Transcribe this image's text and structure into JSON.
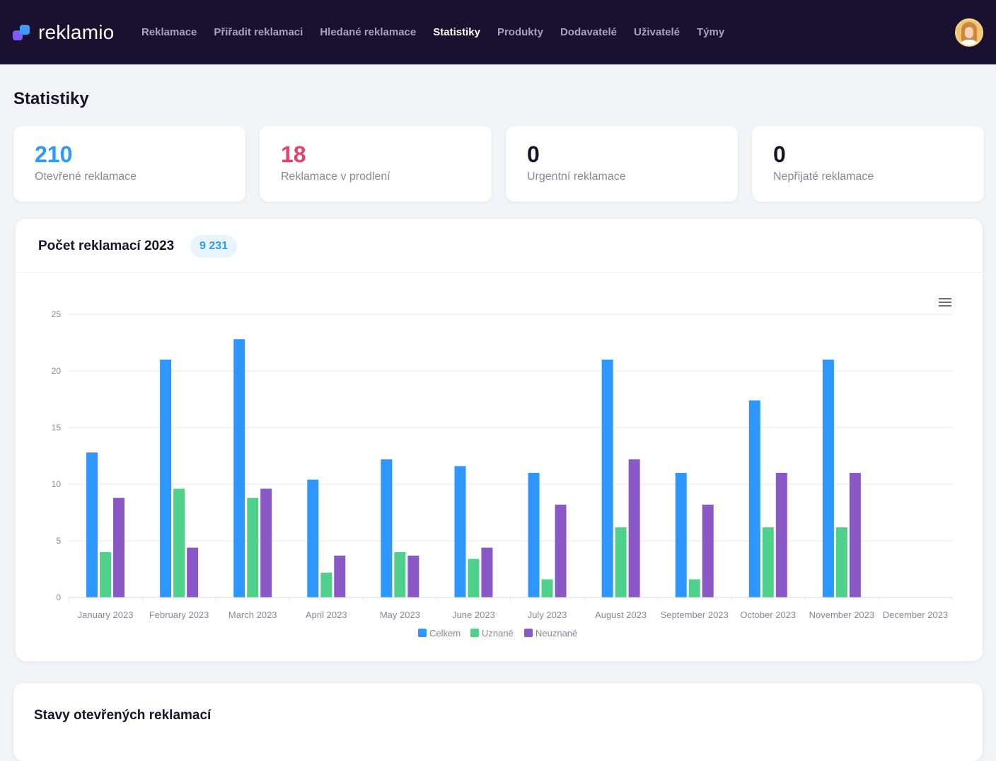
{
  "app": {
    "name": "reklamio"
  },
  "nav": {
    "items": [
      {
        "label": "Reklamace",
        "active": false
      },
      {
        "label": "Přiřadit reklamaci",
        "active": false
      },
      {
        "label": "Hledané reklamace",
        "active": false
      },
      {
        "label": "Statistiky",
        "active": true
      },
      {
        "label": "Produkty",
        "active": false
      },
      {
        "label": "Dodavatelé",
        "active": false
      },
      {
        "label": "Uživatelé",
        "active": false
      },
      {
        "label": "Týmy",
        "active": false
      }
    ]
  },
  "page": {
    "title": "Statistiky"
  },
  "stats": [
    {
      "value": "210",
      "label": "Otevřené reklamace",
      "color": "#2e9bf5"
    },
    {
      "value": "18",
      "label": "Reklamace v prodlení",
      "color": "#e4416b"
    },
    {
      "value": "0",
      "label": "Urgentní reklamace",
      "color": "#16132b"
    },
    {
      "value": "0",
      "label": "Nepřijaté reklamace",
      "color": "#16132b"
    }
  ],
  "chart_card": {
    "title": "Počet reklamací 2023",
    "badge": "9 231",
    "menu_icon": "hamburger-menu-icon"
  },
  "chart_data": {
    "type": "bar",
    "title": "",
    "xlabel": "",
    "ylabel": "",
    "ylim": [
      0,
      25
    ],
    "yticks": [
      0,
      5,
      10,
      15,
      20,
      25
    ],
    "grid": true,
    "legend_position": "bottom",
    "categories": [
      "January 2023",
      "February 2023",
      "March 2023",
      "April 2023",
      "May 2023",
      "June 2023",
      "July 2023",
      "August 2023",
      "September 2023",
      "October 2023",
      "November 2023",
      "December 2023"
    ],
    "series": [
      {
        "name": "Celkem",
        "color": "#2e96ff",
        "values": [
          12.8,
          21,
          22.8,
          10.4,
          12.2,
          11.6,
          11,
          21,
          11,
          17.4,
          21,
          0
        ]
      },
      {
        "name": "Uznané",
        "color": "#4fd18b",
        "values": [
          4,
          9.6,
          8.8,
          2.2,
          4,
          3.4,
          1.6,
          6.2,
          1.6,
          6.2,
          6.2,
          0
        ]
      },
      {
        "name": "Neuznané",
        "color": "#8958c6",
        "values": [
          8.8,
          4.4,
          9.6,
          3.7,
          3.7,
          4.4,
          8.2,
          12.2,
          8.2,
          11,
          11,
          0
        ]
      }
    ]
  },
  "section2": {
    "title": "Stavy otevřených reklamací"
  }
}
